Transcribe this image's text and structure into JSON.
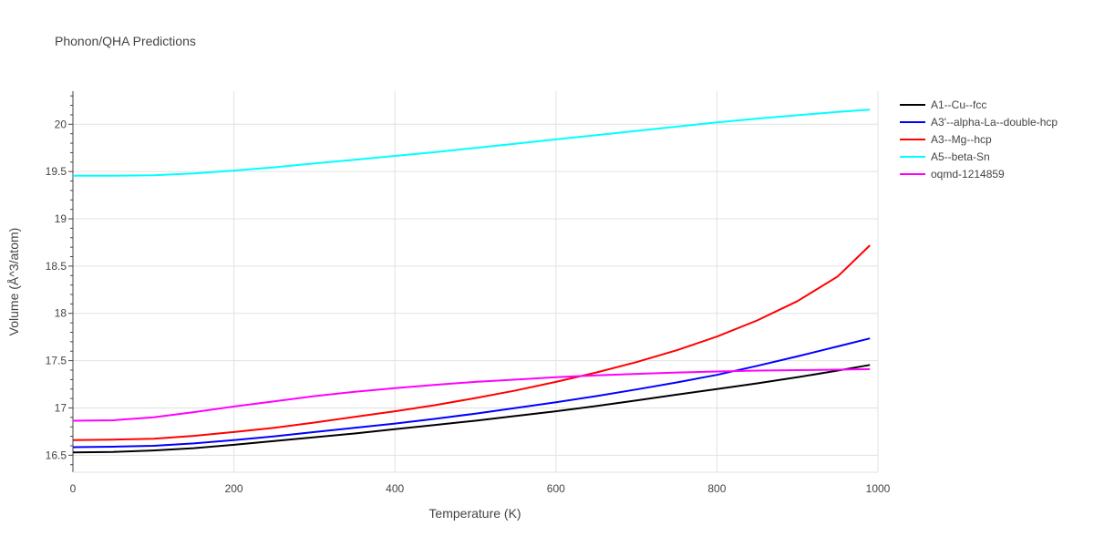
{
  "chart_data": {
    "type": "line",
    "title": "Phonon/QHA Predictions",
    "xlabel": "Temperature (K)",
    "ylabel": "Volume (Å^3/atom)",
    "xlim": [
      0,
      1000
    ],
    "ylim": [
      16.32,
      20.35
    ],
    "xticks": [
      0,
      200,
      400,
      600,
      800,
      1000
    ],
    "yticks": [
      16.5,
      17,
      17.5,
      18,
      18.5,
      19,
      19.5,
      20
    ],
    "ytick_labels": [
      "16.5",
      "17",
      "17.5",
      "18",
      "18.5",
      "19",
      "19.5",
      "20"
    ],
    "grid": true,
    "legend_position": "right",
    "x": [
      0,
      50,
      100,
      150,
      200,
      250,
      300,
      350,
      400,
      450,
      500,
      550,
      600,
      650,
      700,
      750,
      800,
      850,
      900,
      950,
      990
    ],
    "series": [
      {
        "name": "A1--Cu--fcc",
        "color": "#000000",
        "values": [
          16.53,
          16.535,
          16.55,
          16.575,
          16.61,
          16.65,
          16.69,
          16.73,
          16.775,
          16.82,
          16.865,
          16.915,
          16.965,
          17.02,
          17.08,
          17.14,
          17.2,
          17.26,
          17.325,
          17.395,
          17.455
        ]
      },
      {
        "name": "A3'--alpha-La--double-hcp",
        "color": "#0000ff",
        "values": [
          16.585,
          16.59,
          16.6,
          16.625,
          16.66,
          16.7,
          16.745,
          16.79,
          16.835,
          16.885,
          16.94,
          17.0,
          17.06,
          17.125,
          17.195,
          17.27,
          17.35,
          17.445,
          17.545,
          17.65,
          17.735
        ]
      },
      {
        "name": "A3--Mg--hcp",
        "color": "#ff0000",
        "values": [
          16.66,
          16.665,
          16.675,
          16.705,
          16.745,
          16.79,
          16.845,
          16.905,
          16.965,
          17.03,
          17.105,
          17.185,
          17.275,
          17.375,
          17.485,
          17.61,
          17.755,
          17.925,
          18.13,
          18.39,
          18.72
        ]
      },
      {
        "name": "A5--beta-Sn",
        "color": "#00ffff",
        "values": [
          19.455,
          19.455,
          19.46,
          19.48,
          19.51,
          19.545,
          19.585,
          19.625,
          19.665,
          19.705,
          19.75,
          19.795,
          19.84,
          19.885,
          19.93,
          19.975,
          20.02,
          20.06,
          20.095,
          20.13,
          20.155
        ]
      },
      {
        "name": "oqmd-1214859",
        "color": "#ff00ff",
        "values": [
          16.865,
          16.87,
          16.9,
          16.955,
          17.015,
          17.07,
          17.125,
          17.17,
          17.21,
          17.245,
          17.275,
          17.3,
          17.325,
          17.345,
          17.36,
          17.375,
          17.385,
          17.395,
          17.4,
          17.405,
          17.41
        ]
      }
    ]
  }
}
